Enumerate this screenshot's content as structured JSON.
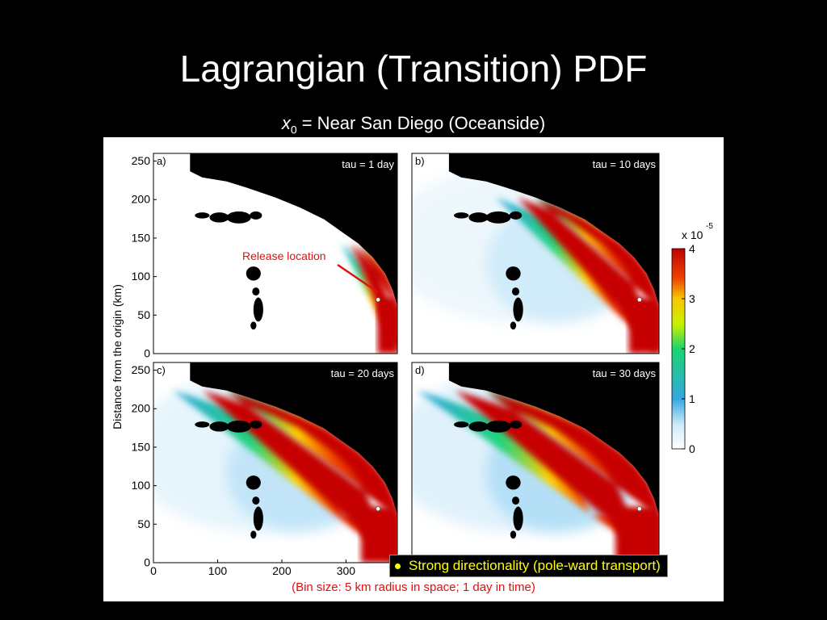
{
  "slide": {
    "title": "Lagrangian (Transition) PDF",
    "subtitle_var": "x",
    "subtitle_sub": "0",
    "subtitle_rest": " = Near San Diego (Oceanside)",
    "callout": "Strong directionality (pole-ward transport)",
    "note": "(Bin size: 5 km radius in space; 1 day in time)",
    "annotation": "Release location"
  },
  "colors": {
    "background": "#000000",
    "annotation": "#e01010",
    "callout": "#ffff00",
    "land": "#000000"
  },
  "chart_data": {
    "type": "heatmap",
    "ylabel": "Distance from the origin (km)",
    "x_ticks": [
      "0",
      "100",
      "200",
      "300"
    ],
    "y_ticks": [
      "250",
      "200",
      "150",
      "100",
      "50",
      "0"
    ],
    "xlim": [
      0,
      380
    ],
    "ylim": [
      0,
      260
    ],
    "panels": [
      {
        "letter": "a)",
        "tau": "tau = 1 day",
        "spread": 1
      },
      {
        "letter": "b)",
        "tau": "tau = 10 days",
        "spread": 10
      },
      {
        "letter": "c)",
        "tau": "tau = 20 days",
        "spread": 20
      },
      {
        "letter": "d)",
        "tau": "tau = 30 days",
        "spread": 30
      }
    ],
    "release_point_km": [
      350,
      70
    ],
    "colorbar": {
      "multiplier": "x 10",
      "exponent": "-5",
      "ticks": [
        "4",
        "3",
        "2",
        "1",
        "0"
      ],
      "range": [
        0,
        4
      ]
    }
  }
}
